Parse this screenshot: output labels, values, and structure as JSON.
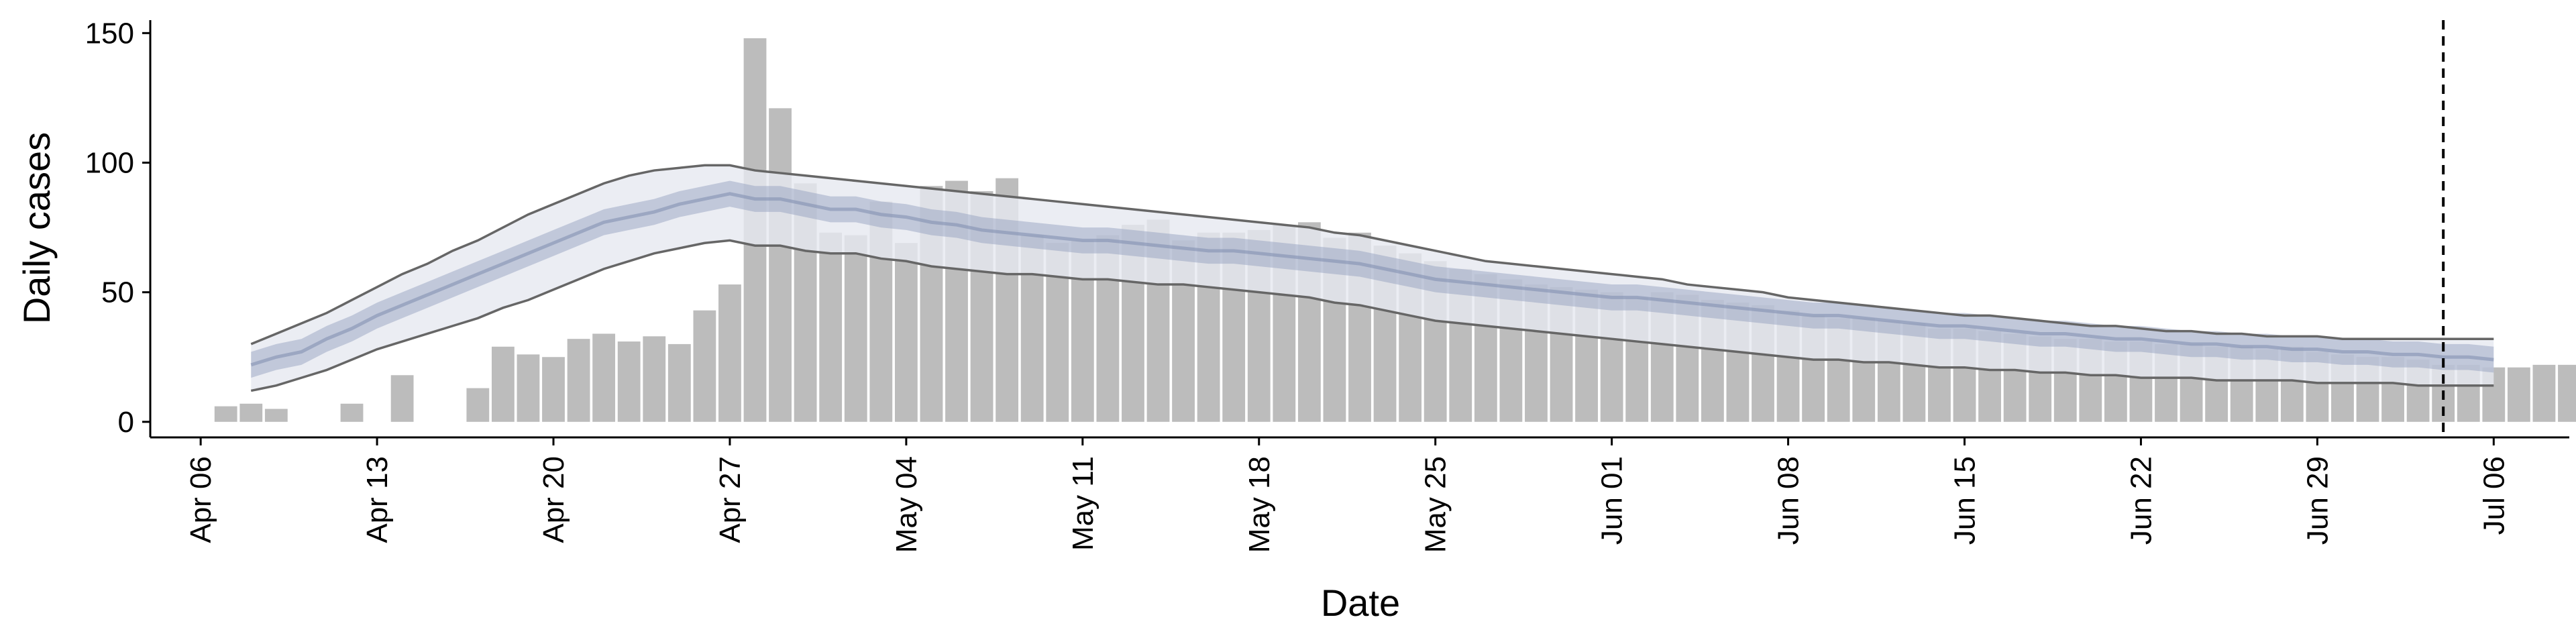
{
  "chart_data": {
    "type": "bar",
    "xlabel": "Date",
    "ylabel": "Daily cases",
    "ylim": [
      -6,
      155
    ],
    "yticks": [
      0,
      50,
      100,
      150
    ],
    "x_start": "2020-04-06",
    "xlim": [
      "2020-04-04",
      "2020-07-09"
    ],
    "xticks": [
      {
        "date": "2020-04-06",
        "label": "Apr 06"
      },
      {
        "date": "2020-04-13",
        "label": "Apr 13"
      },
      {
        "date": "2020-04-20",
        "label": "Apr 20"
      },
      {
        "date": "2020-04-27",
        "label": "Apr 27"
      },
      {
        "date": "2020-05-04",
        "label": "May 04"
      },
      {
        "date": "2020-05-11",
        "label": "May 11"
      },
      {
        "date": "2020-05-18",
        "label": "May 18"
      },
      {
        "date": "2020-05-25",
        "label": "May 25"
      },
      {
        "date": "2020-06-01",
        "label": "Jun 01"
      },
      {
        "date": "2020-06-08",
        "label": "Jun 08"
      },
      {
        "date": "2020-06-15",
        "label": "Jun 15"
      },
      {
        "date": "2020-06-22",
        "label": "Jun 22"
      },
      {
        "date": "2020-06-29",
        "label": "Jun 29"
      },
      {
        "date": "2020-07-06",
        "label": "Jul 06"
      }
    ],
    "bars": {
      "start_date": "2020-04-07",
      "values": [
        6,
        7,
        5,
        0,
        0,
        7,
        0,
        18,
        0,
        0,
        13,
        29,
        26,
        25,
        32,
        34,
        31,
        33,
        30,
        43,
        53,
        148,
        121,
        92,
        73,
        72,
        85,
        69,
        91,
        93,
        89,
        94,
        72,
        69,
        70,
        72,
        76,
        78,
        70,
        73,
        73,
        74,
        76,
        77,
        71,
        73,
        68,
        65,
        62,
        59,
        57,
        55,
        53,
        52,
        51,
        50,
        48,
        50,
        49,
        47,
        46,
        45,
        43,
        41,
        40,
        40,
        39,
        38,
        36,
        36,
        35,
        34,
        33,
        32,
        32,
        31,
        31,
        30,
        30,
        29,
        29,
        28,
        29,
        27,
        26,
        25,
        25,
        24,
        22,
        22,
        21,
        21,
        22,
        22
      ],
      "color": "#bcbcbc"
    },
    "model": {
      "start_date": "2020-04-08",
      "median": [
        22,
        25,
        27,
        32,
        36,
        41,
        45,
        49,
        53,
        57,
        61,
        65,
        69,
        73,
        77,
        79,
        81,
        84,
        86,
        88,
        86,
        86,
        84,
        82,
        82,
        80,
        79,
        77,
        76,
        74,
        73,
        72,
        71,
        70,
        70,
        69,
        68,
        67,
        66,
        66,
        65,
        64,
        63,
        62,
        61,
        59,
        57,
        55,
        54,
        53,
        52,
        51,
        50,
        49,
        48,
        48,
        47,
        46,
        45,
        44,
        43,
        42,
        41,
        41,
        40,
        39,
        38,
        37,
        37,
        36,
        35,
        34,
        34,
        33,
        32,
        32,
        31,
        30,
        30,
        29,
        29,
        28,
        28,
        27,
        27,
        26,
        26,
        25,
        25,
        24
      ],
      "inner_low": [
        17,
        20,
        22,
        27,
        31,
        36,
        40,
        44,
        48,
        52,
        56,
        60,
        64,
        68,
        72,
        74,
        76,
        79,
        81,
        83,
        81,
        81,
        79,
        77,
        77,
        75,
        74,
        72,
        71,
        69,
        68,
        67,
        66,
        65,
        65,
        64,
        63,
        62,
        61,
        61,
        60,
        59,
        58,
        57,
        56,
        54,
        52,
        50,
        49,
        48,
        47,
        46,
        45,
        44,
        43,
        43,
        42,
        41,
        40,
        39,
        38,
        37,
        36,
        36,
        35,
        34,
        33,
        32,
        32,
        31,
        30,
        29,
        29,
        28,
        27,
        27,
        26,
        25,
        25,
        24,
        24,
        23,
        23,
        22,
        22,
        21,
        21,
        20,
        20,
        19
      ],
      "inner_high": [
        27,
        30,
        32,
        37,
        41,
        46,
        50,
        54,
        58,
        62,
        66,
        70,
        74,
        78,
        82,
        84,
        86,
        89,
        91,
        93,
        91,
        91,
        89,
        87,
        87,
        85,
        84,
        82,
        81,
        79,
        78,
        77,
        76,
        75,
        75,
        74,
        73,
        72,
        71,
        71,
        70,
        69,
        68,
        67,
        66,
        64,
        62,
        60,
        59,
        58,
        57,
        56,
        55,
        54,
        53,
        53,
        52,
        51,
        50,
        49,
        48,
        47,
        46,
        46,
        45,
        44,
        43,
        42,
        42,
        41,
        40,
        39,
        39,
        38,
        37,
        37,
        36,
        35,
        35,
        34,
        34,
        33,
        33,
        32,
        32,
        31,
        31,
        30,
        30,
        29
      ],
      "outer_low": [
        12,
        14,
        17,
        20,
        24,
        28,
        31,
        34,
        37,
        40,
        44,
        47,
        51,
        55,
        59,
        62,
        65,
        67,
        69,
        70,
        68,
        68,
        66,
        65,
        65,
        63,
        62,
        60,
        59,
        58,
        57,
        57,
        56,
        55,
        55,
        54,
        53,
        53,
        52,
        51,
        50,
        49,
        48,
        46,
        45,
        43,
        41,
        39,
        38,
        37,
        36,
        35,
        34,
        33,
        32,
        31,
        30,
        29,
        28,
        27,
        26,
        25,
        24,
        24,
        23,
        23,
        22,
        21,
        21,
        20,
        20,
        19,
        19,
        18,
        18,
        17,
        17,
        17,
        16,
        16,
        16,
        16,
        15,
        15,
        15,
        15,
        14,
        14,
        14,
        14
      ],
      "outer_high": [
        30,
        34,
        38,
        42,
        47,
        52,
        57,
        61,
        66,
        70,
        75,
        80,
        84,
        88,
        92,
        95,
        97,
        98,
        99,
        99,
        97,
        96,
        95,
        94,
        93,
        92,
        91,
        90,
        89,
        88,
        87,
        86,
        85,
        84,
        83,
        82,
        81,
        80,
        79,
        78,
        77,
        76,
        75,
        73,
        72,
        70,
        68,
        66,
        64,
        62,
        61,
        60,
        59,
        58,
        57,
        56,
        55,
        53,
        52,
        51,
        50,
        48,
        47,
        46,
        45,
        44,
        43,
        42,
        41,
        41,
        40,
        39,
        38,
        37,
        37,
        36,
        35,
        35,
        34,
        34,
        33,
        33,
        33,
        32,
        32,
        32,
        32,
        32,
        32,
        32
      ],
      "outer_fill": "#e6e8f0",
      "inner_fill": "#8e9cbd",
      "median_stroke": "#8391b3",
      "line_color": "#666666"
    },
    "vline_date": "2020-07-04",
    "grid": false
  }
}
